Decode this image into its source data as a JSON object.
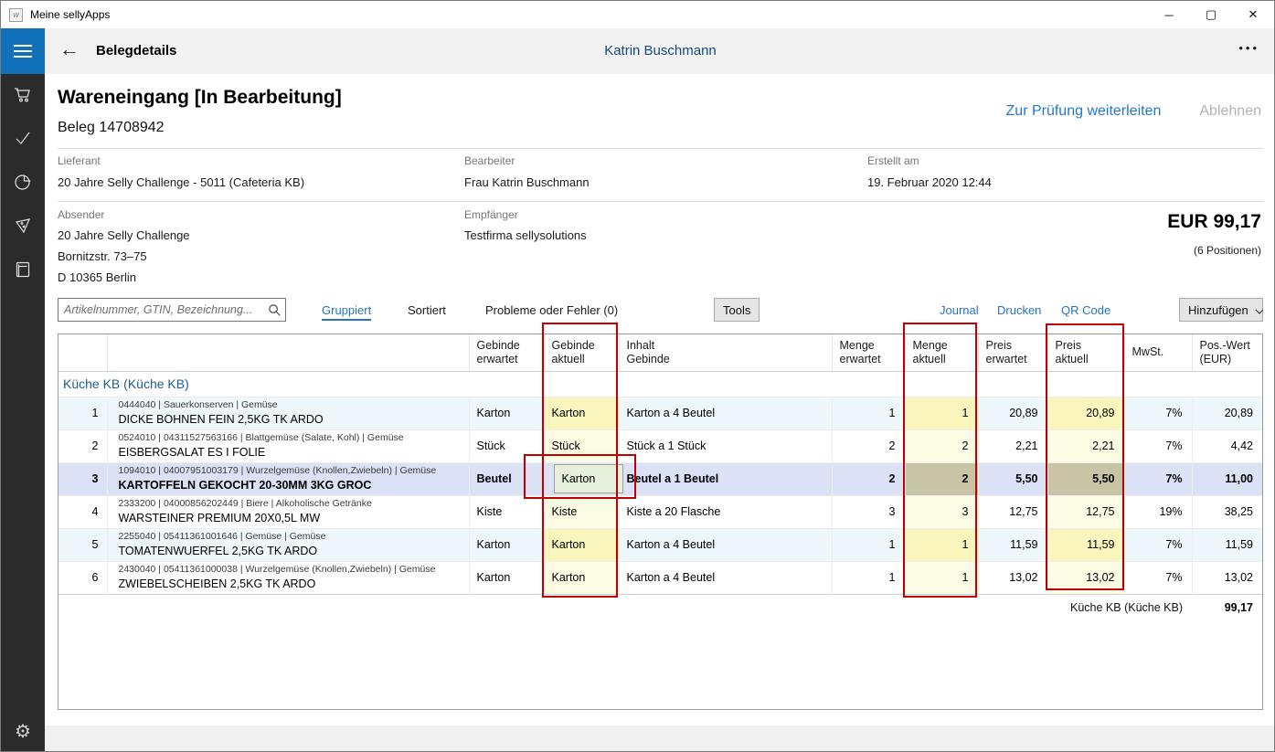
{
  "window": {
    "title": "Meine sellyApps",
    "controls": {
      "minimize": "─",
      "maximize": "▢",
      "close": "✕"
    }
  },
  "appbar": {
    "back": "←",
    "title": "Belegdetails",
    "user": "Katrin Buschmann",
    "more": "•••"
  },
  "sidebar": {
    "icons": [
      "cart",
      "check",
      "pie-chart",
      "tag",
      "book"
    ],
    "settings_icon": "gear"
  },
  "header": {
    "title": "Wareneingang [In Bearbeitung]",
    "subtitle": "Beleg 14708942",
    "actions": {
      "forward": "Zur Prüfung weiterleiten",
      "reject": "Ablehnen"
    },
    "fields": [
      {
        "label": "Lieferant",
        "value": "20 Jahre Selly Challenge - 5011 (Cafeteria KB)"
      },
      {
        "label": "Bearbeiter",
        "value": "Frau Katrin Buschmann"
      },
      {
        "label": "Erstellt am",
        "value": "19. Februar 2020 12:44"
      }
    ],
    "absender": {
      "label": "Absender",
      "lines": [
        "20 Jahre Selly Challenge",
        "Bornitzstr. 73–75",
        "D 10365 Berlin"
      ]
    },
    "empfaenger": {
      "label": "Empfänger",
      "value": "Testfirma sellysolutions"
    },
    "total": {
      "amount": "EUR 99,17",
      "positions": "(6 Positionen)"
    }
  },
  "toolbar": {
    "search_placeholder": "Artikelnummer, GTIN, Bezeichnung...",
    "grouped": "Gruppiert",
    "sorted": "Sortiert",
    "problems": "Probleme oder Fehler (0)",
    "tools": "Tools",
    "journal": "Journal",
    "print": "Drucken",
    "qr": "QR Code",
    "add": "Hinzufügen"
  },
  "table": {
    "columns": [
      {
        "l1": "",
        "l2": ""
      },
      {
        "l1": "",
        "l2": ""
      },
      {
        "l1": "Gebinde",
        "l2": "erwartet"
      },
      {
        "l1": "Gebinde",
        "l2": "aktuell"
      },
      {
        "l1": "Inhalt",
        "l2": "Gebinde"
      },
      {
        "l1": "Menge",
        "l2": "erwartet"
      },
      {
        "l1": "Menge",
        "l2": "aktuell"
      },
      {
        "l1": "Preis",
        "l2": "erwartet"
      },
      {
        "l1": "Preis",
        "l2": "aktuell"
      },
      {
        "l1": "MwSt.",
        "l2": ""
      },
      {
        "l1": "Pos.-Wert",
        "l2": "(EUR)"
      }
    ],
    "group": "Küche KB (Küche KB)",
    "rows": [
      {
        "num": "1",
        "meta": "0444040 | Sauerkonserven | Gemüse",
        "name": "DICKE BOHNEN FEIN 2,5KG TK ARDO",
        "geb_erw": "Karton",
        "geb_akt": "Karton",
        "inhalt": "Karton a 4 Beutel",
        "menge_erw": "1",
        "menge_akt": "1",
        "preis_erw": "20,89",
        "preis_akt": "20,89",
        "mwst": "7%",
        "wert": "20,89"
      },
      {
        "num": "2",
        "meta": "0524010 | 04311527563166 | Blattgemüse (Salate, Kohl) | Gemüse",
        "name": "EISBERGSALAT ES I FOLIE",
        "geb_erw": "Stück",
        "geb_akt": "Stück",
        "inhalt": "Stück a 1 Stück",
        "menge_erw": "2",
        "menge_akt": "2",
        "preis_erw": "2,21",
        "preis_akt": "2,21",
        "mwst": "7%",
        "wert": "4,42"
      },
      {
        "num": "3",
        "meta": "1094010 | 04007951003179 | Wurzelgemüse (Knollen,Zwiebeln) | Gemüse",
        "name": "KARTOFFELN GEKOCHT 20-30MM 3KG GROC",
        "geb_erw": "Beutel",
        "geb_akt": "Karton",
        "inhalt": "Beutel a 1 Beutel",
        "menge_erw": "2",
        "menge_akt": "2",
        "preis_erw": "5,50",
        "preis_akt": "5,50",
        "mwst": "7%",
        "wert": "11,00",
        "selected": true,
        "editing": true
      },
      {
        "num": "4",
        "meta": "2333200 | 04000856202449 | Biere | Alkoholische Getränke",
        "name": "WARSTEINER PREMIUM 20X0,5L MW",
        "geb_erw": "Kiste",
        "geb_akt": "Kiste",
        "inhalt": "Kiste a 20 Flasche",
        "menge_erw": "3",
        "menge_akt": "3",
        "preis_erw": "12,75",
        "preis_akt": "12,75",
        "mwst": "19%",
        "wert": "38,25"
      },
      {
        "num": "5",
        "meta": "2255040 | 05411361001646 | Gemüse | Gemüse",
        "name": "TOMATENWUERFEL 2,5KG TK ARDO",
        "geb_erw": "Karton",
        "geb_akt": "Karton",
        "inhalt": "Karton a 4 Beutel",
        "menge_erw": "1",
        "menge_akt": "1",
        "preis_erw": "11,59",
        "preis_akt": "11,59",
        "mwst": "7%",
        "wert": "11,59"
      },
      {
        "num": "6",
        "meta": "2430040 | 05411361000038 | Wurzelgemüse (Knollen,Zwiebeln) | Gemüse",
        "name": "ZWIEBELSCHEIBEN 2,5KG TK ARDO",
        "geb_erw": "Karton",
        "geb_akt": "Karton",
        "inhalt": "Karton a 4 Beutel",
        "menge_erw": "1",
        "menge_akt": "1",
        "preis_erw": "13,02",
        "preis_akt": "13,02",
        "mwst": "7%",
        "wert": "13,02"
      }
    ],
    "footer": {
      "label": "Küche KB (Küche KB)",
      "total": "99,17"
    }
  },
  "colors": {
    "accent_blue": "#1170ba",
    "link_blue": "#2772c3",
    "annotation_red": "#c00000",
    "highlight_yellow": "#faf5bd",
    "highlight_yellow_pale": "#fcfbe3",
    "selected_row": "#dbe2f6",
    "selected_highlight": "#c7c5a6",
    "editor_green": "#e5f1da"
  }
}
